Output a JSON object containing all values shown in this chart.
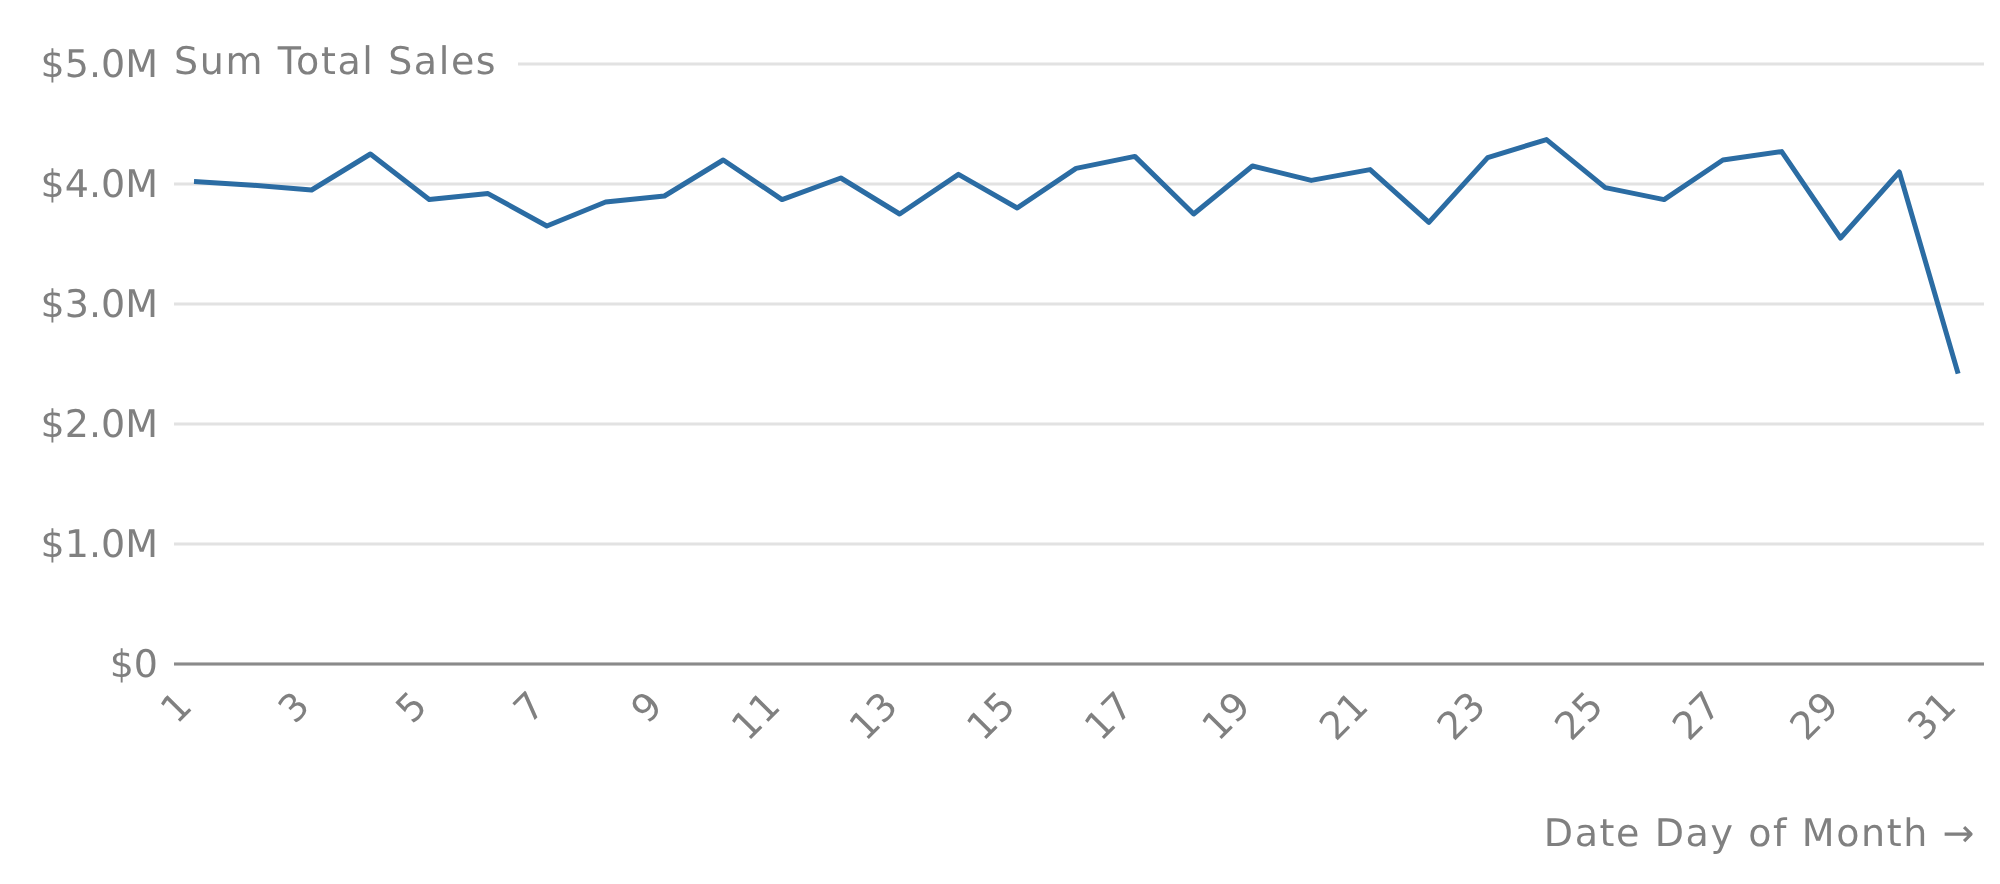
{
  "chart_data": {
    "type": "line",
    "ylabel": "Sum Total Sales",
    "xlabel": "Date Day of Month →",
    "x": [
      1,
      2,
      3,
      4,
      5,
      6,
      7,
      8,
      9,
      10,
      11,
      12,
      13,
      14,
      15,
      16,
      17,
      18,
      19,
      20,
      21,
      22,
      23,
      24,
      25,
      26,
      27,
      28,
      29,
      30,
      31
    ],
    "values": [
      4.02,
      3.99,
      3.95,
      4.25,
      3.87,
      3.92,
      3.65,
      3.85,
      3.9,
      4.2,
      3.87,
      4.05,
      3.75,
      4.08,
      3.8,
      4.13,
      4.23,
      3.75,
      4.15,
      4.03,
      4.12,
      3.68,
      4.22,
      4.37,
      3.97,
      3.87,
      4.2,
      4.27,
      3.55,
      4.1,
      2.42
    ],
    "color": "#2b6ca3",
    "xlim": [
      0.66,
      31.44
    ],
    "xticks": [
      1,
      3,
      5,
      7,
      9,
      11,
      13,
      15,
      17,
      19,
      21,
      23,
      25,
      27,
      29,
      31
    ],
    "ylim": [
      0,
      5
    ],
    "yticks": [
      {
        "value": 0,
        "label": "$0"
      },
      {
        "value": 1,
        "label": "$1.0M"
      },
      {
        "value": 2,
        "label": "$2.0M"
      },
      {
        "value": 3,
        "label": "$3.0M"
      },
      {
        "value": 4,
        "label": "$4.0M"
      },
      {
        "value": 5,
        "label": "$5.0M"
      }
    ],
    "grid": "y"
  }
}
